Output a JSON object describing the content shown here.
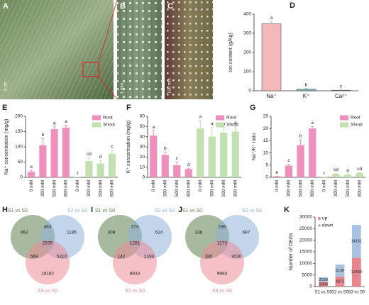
{
  "photos": [
    {
      "panel": "A",
      "scale_bar": "5 cm"
    },
    {
      "panel": "B",
      "scale_bar": "1 mm"
    },
    {
      "panel": "C",
      "scale_bar": "100 mm"
    }
  ],
  "chart_data": [
    {
      "type": "bar",
      "panel": "D",
      "ylabel": "Ion content (g/Kg)",
      "categories": [
        "Na⁺",
        "K⁺",
        "Ca²⁺"
      ],
      "values": [
        350,
        8,
        3
      ],
      "errors": [
        12,
        3,
        1
      ],
      "letters": [
        "a",
        "b",
        "c"
      ],
      "colors": [
        "#f4b8bb",
        "#7fb5b2",
        "#8c8c8c"
      ],
      "ylim": [
        0,
        400
      ],
      "yticks": [
        0,
        100,
        200,
        300,
        400
      ]
    },
    {
      "type": "bar",
      "panel": "E",
      "ylabel": "Na⁺ concentration (mg/g)",
      "categories": [
        "0 mM",
        "300 mM",
        "500 mM",
        "800 mM",
        "0 mM",
        "300 mM",
        "500 mM",
        "800 mM"
      ],
      "series": [
        {
          "name": "Root",
          "color": "#ee8fbc",
          "values": [
            18,
            105,
            158,
            163,
            null,
            null,
            null,
            null
          ],
          "errors": [
            5,
            22,
            8,
            8,
            null,
            null,
            null,
            null
          ],
          "letters": [
            "e",
            "b",
            "a",
            "a",
            null,
            null,
            null,
            null
          ]
        },
        {
          "name": "Shoot",
          "color": "#c2e0b0",
          "values": [
            null,
            null,
            null,
            null,
            1,
            53,
            45,
            77
          ],
          "errors": [
            null,
            null,
            null,
            null,
            0,
            12,
            10,
            12
          ],
          "letters": [
            null,
            null,
            null,
            null,
            "f",
            "cd",
            "d",
            "c"
          ]
        }
      ],
      "ylim": [
        0,
        200
      ],
      "yticks": [
        0,
        50,
        100,
        150,
        200
      ],
      "legend": "upper right"
    },
    {
      "type": "bar",
      "panel": "F",
      "ylabel": "K⁺ concentration (mg/g)",
      "categories": [
        "0 mM",
        "300 mM",
        "500 mM",
        "800 mM",
        "0 mM",
        "300 mM",
        "500 mM",
        "800 mM"
      ],
      "series": [
        {
          "name": "Root",
          "color": "#ee8fbc",
          "values": [
            41,
            22,
            12,
            8,
            null,
            null,
            null,
            null
          ],
          "errors": [
            5,
            3,
            3,
            1,
            null,
            null,
            null,
            null
          ],
          "letters": [
            "a",
            "b",
            "c",
            "d",
            null,
            null,
            null,
            null
          ]
        },
        {
          "name": "Shoot",
          "color": "#c2e0b0",
          "values": [
            null,
            null,
            null,
            null,
            48,
            40,
            44,
            45
          ],
          "errors": [
            null,
            null,
            null,
            null,
            8,
            9,
            5,
            5
          ],
          "letters": [
            null,
            null,
            null,
            null,
            "a",
            "a",
            "a",
            "a"
          ]
        }
      ],
      "ylim": [
        0,
        60
      ],
      "yticks": [
        0,
        10,
        20,
        30,
        40,
        50,
        60
      ],
      "legend": "upper right"
    },
    {
      "type": "bar",
      "panel": "G",
      "ylabel": "Na⁺/K⁺ ratio",
      "categories": [
        "0 mM",
        "300 mM",
        "500 mM",
        "800 mM",
        "0 mM",
        "300 mM",
        "500 mM",
        "800 mM"
      ],
      "series": [
        {
          "name": "Root",
          "color": "#ee8fbc",
          "values": [
            0.4,
            4.8,
            13.2,
            20,
            null,
            null,
            null,
            null
          ],
          "errors": [
            0.1,
            0.6,
            2.2,
            0.8,
            null,
            null,
            null,
            null
          ],
          "letters": [
            "e",
            "c",
            "b",
            "a",
            null,
            null,
            null,
            null
          ]
        },
        {
          "name": "Shoot",
          "color": "#c2e0b0",
          "values": [
            null,
            null,
            null,
            null,
            0.1,
            1.4,
            1,
            1.7
          ],
          "errors": [
            null,
            null,
            null,
            null,
            0,
            0.3,
            0.2,
            0.2
          ],
          "letters": [
            null,
            null,
            null,
            null,
            "f",
            "cd",
            "d",
            "cd"
          ]
        }
      ],
      "ylim": [
        0,
        25
      ],
      "yticks": [
        0,
        5,
        10,
        15,
        20,
        25
      ],
      "legend": "upper right"
    },
    {
      "type": "venn",
      "panel": "H",
      "sets": [
        "S1 vs S0",
        "S2 vs S0",
        "S3 vs S0"
      ],
      "colors": [
        "#5f7f4f",
        "#8fb2da",
        "#ec8c98"
      ],
      "values": [
        463,
        1195,
        463,
        2539,
        569,
        5310,
        18182
      ]
    },
    {
      "type": "venn",
      "panel": "I",
      "sets": [
        "S1 vs S0",
        "S2 vs S0",
        "S3 vs S0"
      ],
      "colors": [
        "#5f7f4f",
        "#8fb2da",
        "#ec8c98"
      ],
      "values": [
        308,
        624,
        273,
        1281,
        142,
        2193,
        8833
      ]
    },
    {
      "type": "venn",
      "panel": "J",
      "sets": [
        "S1 vs S0",
        "S2 vs S0",
        "S3 vs S0"
      ],
      "colors": [
        "#5f7f4f",
        "#8fb2da",
        "#ec8c98"
      ],
      "values": [
        336,
        697,
        236,
        1173,
        285,
        3030,
        9663
      ]
    },
    {
      "type": "stacked_bar",
      "panel": "K",
      "ylabel": "Number of DEGs",
      "categories": [
        "S1 vs S0",
        "S2 vs S0",
        "S3 vs S0"
      ],
      "series": [
        {
          "name": "up",
          "color": "#e8868e",
          "values": [
            2004,
            4371,
            12449
          ]
        },
        {
          "name": "down",
          "color": "#a8c3e2",
          "values": [
            2030,
            5136,
            14151
          ]
        }
      ],
      "ylim": [
        0,
        30000
      ],
      "yticks": [
        0,
        5000,
        10000,
        15000,
        20000,
        25000,
        30000
      ],
      "legend": "upper left"
    }
  ]
}
